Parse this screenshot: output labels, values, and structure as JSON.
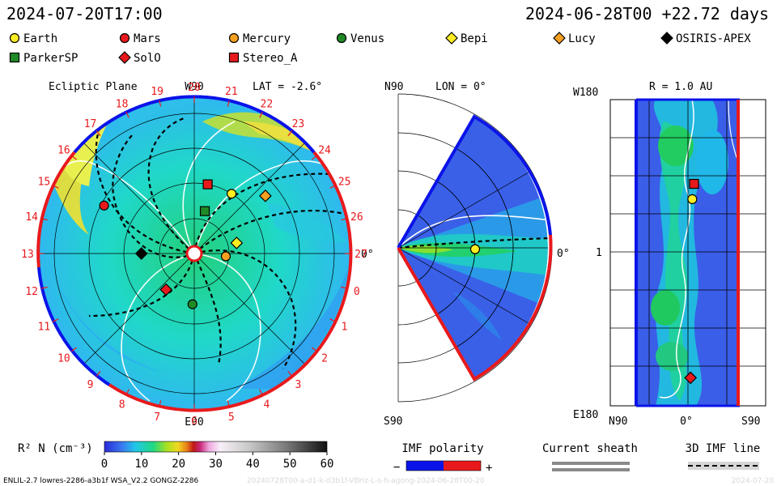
{
  "header": {
    "sim_time": "2024-07-20T17:00",
    "ref_time": "2024-06-28T00 +22.72 days"
  },
  "legend": {
    "items": [
      {
        "label": "Earth",
        "color": "#ffee22",
        "shape": "circle"
      },
      {
        "label": "Mars",
        "color": "#e8191c",
        "shape": "circle"
      },
      {
        "label": "Mercury",
        "color": "#f5a020",
        "shape": "circle"
      },
      {
        "label": "Venus",
        "color": "#1f8a25",
        "shape": "circle"
      },
      {
        "label": "Bepi",
        "color": "#ffee22",
        "shape": "diamond"
      },
      {
        "label": "Lucy",
        "color": "#f5a020",
        "shape": "diamond"
      },
      {
        "label": "OSIRIS-APEX",
        "color": "#000000",
        "shape": "diamond"
      },
      {
        "label": "ParkerSP",
        "color": "#1f8a25",
        "shape": "square"
      },
      {
        "label": "SolO",
        "color": "#e8191c",
        "shape": "diamond"
      },
      {
        "label": "Stereo_A",
        "color": "#e8191c",
        "shape": "square"
      }
    ]
  },
  "chart_data": [
    {
      "type": "heatmap",
      "title": "Ecliptic Plane",
      "lat_label": "LAT = -2.6°",
      "top_label": "W90",
      "bottom_label": "E90",
      "right_label": "0°",
      "rotation_labels": [
        "20",
        "21",
        "22",
        "23",
        "24",
        "25",
        "26",
        "27",
        "0",
        "1",
        "2",
        "3",
        "4",
        "5",
        "6",
        "7",
        "8",
        "9",
        "10",
        "11",
        "12",
        "13",
        "14",
        "15",
        "16",
        "17",
        "18",
        "19"
      ],
      "objects": [
        {
          "label": "Mars",
          "lon_deg": 152,
          "r_au": 1.45
        },
        {
          "label": "Stereo_A",
          "lon_deg": 79,
          "r_au": 1.0
        },
        {
          "label": "Earth",
          "lon_deg": 58,
          "r_au": 1.0
        },
        {
          "label": "Lucy",
          "lon_deg": 39,
          "r_au": 1.3
        },
        {
          "label": "ParkerSP",
          "lon_deg": 76,
          "r_au": 0.62
        },
        {
          "label": "Bepi",
          "lon_deg": 14,
          "r_au": 0.62
        },
        {
          "label": "Mercury",
          "lon_deg": -5,
          "r_au": 0.45
        },
        {
          "label": "OSIRIS-APEX",
          "lon_deg": 180,
          "r_au": 0.75
        },
        {
          "label": "SolO",
          "lon_deg": -128,
          "r_au": 0.65
        },
        {
          "label": "Venus",
          "lon_deg": -92,
          "r_au": 0.72
        }
      ]
    },
    {
      "type": "heatmap",
      "title": "LON = 0°",
      "top_label": "N90",
      "bottom_label": "S90",
      "right_label": "0°",
      "objects": [
        {
          "label": "Earth",
          "lat_deg": -1,
          "r_au": 1.0
        }
      ]
    },
    {
      "type": "heatmap",
      "title": "R = 1.0 AU",
      "y_top": "W180",
      "y_mid": "1",
      "y_bottom": "E180",
      "x_left": "N90",
      "x_mid": "0°",
      "x_right": "S90",
      "objects": [
        {
          "label": "Stereo_A",
          "lat_deg": -7,
          "lon_deg": 80
        },
        {
          "label": "Earth",
          "lat_deg": -5,
          "lon_deg": 62
        },
        {
          "label": "SolO",
          "lat_deg": -3,
          "lon_deg": -148
        }
      ]
    }
  ],
  "colorbar": {
    "label": "R² N (cm⁻³)",
    "ticks": [
      "0",
      "10",
      "20",
      "30",
      "40",
      "50",
      "60"
    ]
  },
  "imf_polarity": {
    "title": "IMF polarity",
    "minus": "−",
    "plus": "+",
    "neg_color": "#0a14e8",
    "pos_color": "#e8191c"
  },
  "current_sheath": {
    "title": "Current sheath"
  },
  "imf_line": {
    "title": "3D IMF line"
  },
  "footer": {
    "left": "ENLIL-2.7 lowres-2286-a3b1f WSA_V2.2 GONGZ-2286",
    "mid": "20240728T00-a-d1-k-d3b1f-VBHz-L-s-h-agong-2024-06-28T00-20",
    "right": "2024-07-20"
  }
}
